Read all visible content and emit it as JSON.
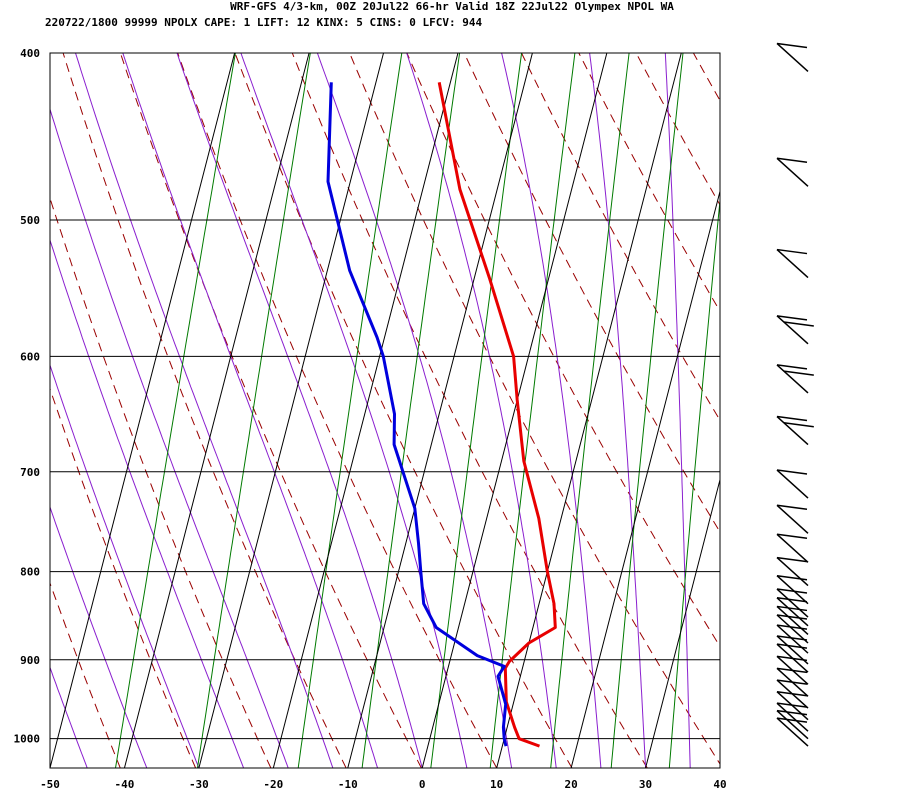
{
  "header": {
    "line1": "WRF-GFS 4/3-km, 00Z 20Jul22 66-hr Valid 18Z 22Jul22 Olympex NPOL WA",
    "line2": "220722/1800 99999  NPOLX   CAPE:     1 LIFT:    12 KINX:     5 CINS:     0 LFCV:   944"
  },
  "chart_data": {
    "type": "line",
    "title": "WRF-GFS 4/3-km, 00Z 20Jul22 66-hr Valid 18Z 22Jul22 Olympex NPOL WA",
    "xlabel": "",
    "ylabel": "",
    "x_ticks": [
      "-50",
      "-40",
      "-30",
      "-20",
      "-10",
      "0",
      "10",
      "20",
      "30",
      "40"
    ],
    "y_ticks": [
      "400",
      "500",
      "600",
      "700",
      "800",
      "900",
      "1000"
    ],
    "x_range": [
      -50,
      40
    ],
    "p_range": [
      400,
      1040
    ],
    "log_pressure_axis": true,
    "grid": true,
    "skew_deg_per_unit": 24.8,
    "series": [
      {
        "name": "",
        "color": "#e80000",
        "x": [
          -21.5,
          -15,
          -8,
          -2,
          0,
          3,
          7,
          10,
          12,
          13,
          10,
          8,
          7.7,
          9,
          11,
          12,
          15
        ],
        "p": [
          416,
          480,
          540,
          600,
          636,
          690,
          745,
          800,
          835,
          862,
          880,
          902,
          910,
          952,
          985,
          1000,
          1010
        ]
      },
      {
        "name": "",
        "color": "#0000dd",
        "x": [
          -36,
          -33,
          -27,
          -21,
          -19.5,
          -16,
          -15,
          -10,
          -8.3,
          -7,
          -5.5,
          -3,
          3.5,
          7.5,
          7,
          9,
          9.5,
          10,
          10.5
        ],
        "p": [
          416,
          475,
          535,
          585,
          600,
          648,
          675,
          735,
          770,
          800,
          835,
          862,
          895,
          908,
          920,
          955,
          985,
          1000,
          1010
        ]
      }
    ],
    "background_lines": {
      "isotherm_color": "#000000",
      "dry_adiabat_color": "#9a0000",
      "moist_adiabat_color": "#8a1fcf",
      "mixing_ratio_color": "#007a00"
    },
    "wind_barbs": {
      "color": "#000000",
      "pressures": [
        410,
        478,
        540,
        590,
        630,
        675,
        725,
        760,
        790,
        815,
        835,
        850,
        860,
        870,
        880,
        892,
        905,
        915,
        930,
        945,
        960,
        975,
        990,
        1000,
        1010
      ],
      "full_barbs": [
        1,
        1,
        1,
        2,
        2,
        2,
        1,
        1,
        1,
        1,
        1,
        1,
        1,
        1,
        1,
        1,
        1,
        1,
        1,
        1,
        1,
        1,
        1,
        1,
        1
      ],
      "half_barbs": [
        0,
        0,
        0,
        0,
        0,
        0,
        0,
        0,
        0,
        0,
        0,
        0,
        0,
        0,
        0,
        0,
        0,
        0,
        0,
        0,
        0,
        0,
        0,
        0,
        0
      ]
    }
  }
}
